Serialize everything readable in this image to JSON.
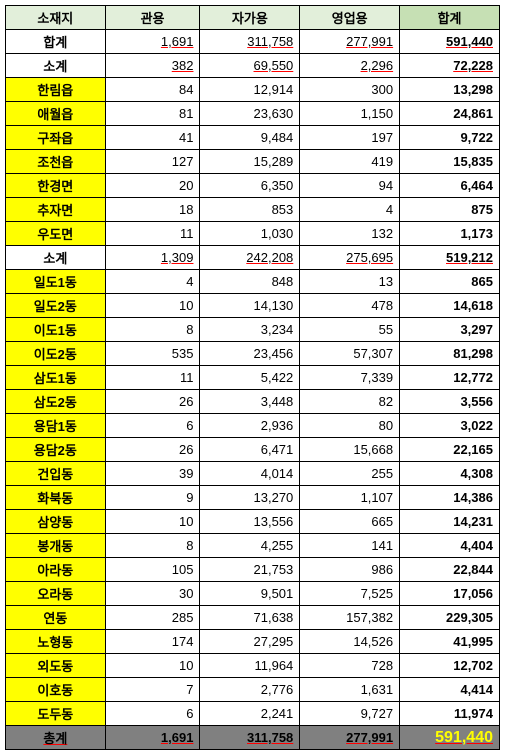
{
  "headers": {
    "location": "소재지",
    "official": "관용",
    "private": "자가용",
    "business": "영업용",
    "total": "합계"
  },
  "rows": [
    {
      "loc": "합계",
      "yellow": false,
      "official": "1,691",
      "private": "311,758",
      "business": "277,991",
      "total": "591,440",
      "underlineNums": true
    },
    {
      "loc": "소계",
      "yellow": false,
      "official": "382",
      "private": "69,550",
      "business": "2,296",
      "total": "72,228",
      "underlineNums": true
    },
    {
      "loc": "한림읍",
      "yellow": true,
      "official": "84",
      "private": "12,914",
      "business": "300",
      "total": "13,298"
    },
    {
      "loc": "애월읍",
      "yellow": true,
      "official": "81",
      "private": "23,630",
      "business": "1,150",
      "total": "24,861"
    },
    {
      "loc": "구좌읍",
      "yellow": true,
      "official": "41",
      "private": "9,484",
      "business": "197",
      "total": "9,722"
    },
    {
      "loc": "조천읍",
      "yellow": true,
      "official": "127",
      "private": "15,289",
      "business": "419",
      "total": "15,835"
    },
    {
      "loc": "한경면",
      "yellow": true,
      "official": "20",
      "private": "6,350",
      "business": "94",
      "total": "6,464"
    },
    {
      "loc": "추자면",
      "yellow": true,
      "official": "18",
      "private": "853",
      "business": "4",
      "total": "875"
    },
    {
      "loc": "우도면",
      "yellow": true,
      "official": "11",
      "private": "1,030",
      "business": "132",
      "total": "1,173"
    },
    {
      "loc": "소계",
      "yellow": false,
      "official": "1,309",
      "private": "242,208",
      "business": "275,695",
      "total": "519,212",
      "underlineNums": true
    },
    {
      "loc": "일도1동",
      "yellow": true,
      "official": "4",
      "private": "848",
      "business": "13",
      "total": "865"
    },
    {
      "loc": "일도2동",
      "yellow": true,
      "official": "10",
      "private": "14,130",
      "business": "478",
      "total": "14,618"
    },
    {
      "loc": "이도1동",
      "yellow": true,
      "official": "8",
      "private": "3,234",
      "business": "55",
      "total": "3,297"
    },
    {
      "loc": "이도2동",
      "yellow": true,
      "official": "535",
      "private": "23,456",
      "business": "57,307",
      "total": "81,298"
    },
    {
      "loc": "삼도1동",
      "yellow": true,
      "official": "11",
      "private": "5,422",
      "business": "7,339",
      "total": "12,772"
    },
    {
      "loc": "삼도2동",
      "yellow": true,
      "official": "26",
      "private": "3,448",
      "business": "82",
      "total": "3,556"
    },
    {
      "loc": "용담1동",
      "yellow": true,
      "official": "6",
      "private": "2,936",
      "business": "80",
      "total": "3,022"
    },
    {
      "loc": "용담2동",
      "yellow": true,
      "official": "26",
      "private": "6,471",
      "business": "15,668",
      "total": "22,165"
    },
    {
      "loc": "건입동",
      "yellow": true,
      "official": "39",
      "private": "4,014",
      "business": "255",
      "total": "4,308"
    },
    {
      "loc": "화북동",
      "yellow": true,
      "official": "9",
      "private": "13,270",
      "business": "1,107",
      "total": "14,386"
    },
    {
      "loc": "삼양동",
      "yellow": true,
      "official": "10",
      "private": "13,556",
      "business": "665",
      "total": "14,231"
    },
    {
      "loc": "봉개동",
      "yellow": true,
      "official": "8",
      "private": "4,255",
      "business": "141",
      "total": "4,404"
    },
    {
      "loc": "아라동",
      "yellow": true,
      "official": "105",
      "private": "21,753",
      "business": "986",
      "total": "22,844"
    },
    {
      "loc": "오라동",
      "yellow": true,
      "official": "30",
      "private": "9,501",
      "business": "7,525",
      "total": "17,056"
    },
    {
      "loc": "연동",
      "yellow": true,
      "official": "285",
      "private": "71,638",
      "business": "157,382",
      "total": "229,305"
    },
    {
      "loc": "노형동",
      "yellow": true,
      "official": "174",
      "private": "27,295",
      "business": "14,526",
      "total": "41,995"
    },
    {
      "loc": "외도동",
      "yellow": true,
      "official": "10",
      "private": "11,964",
      "business": "728",
      "total": "12,702"
    },
    {
      "loc": "이호동",
      "yellow": true,
      "official": "7",
      "private": "2,776",
      "business": "1,631",
      "total": "4,414"
    },
    {
      "loc": "도두동",
      "yellow": true,
      "official": "6",
      "private": "2,241",
      "business": "9,727",
      "total": "11,974"
    }
  ],
  "grand": {
    "loc": "총계",
    "official": "1,691",
    "private": "311,758",
    "business": "277,991",
    "total": "591,440"
  }
}
